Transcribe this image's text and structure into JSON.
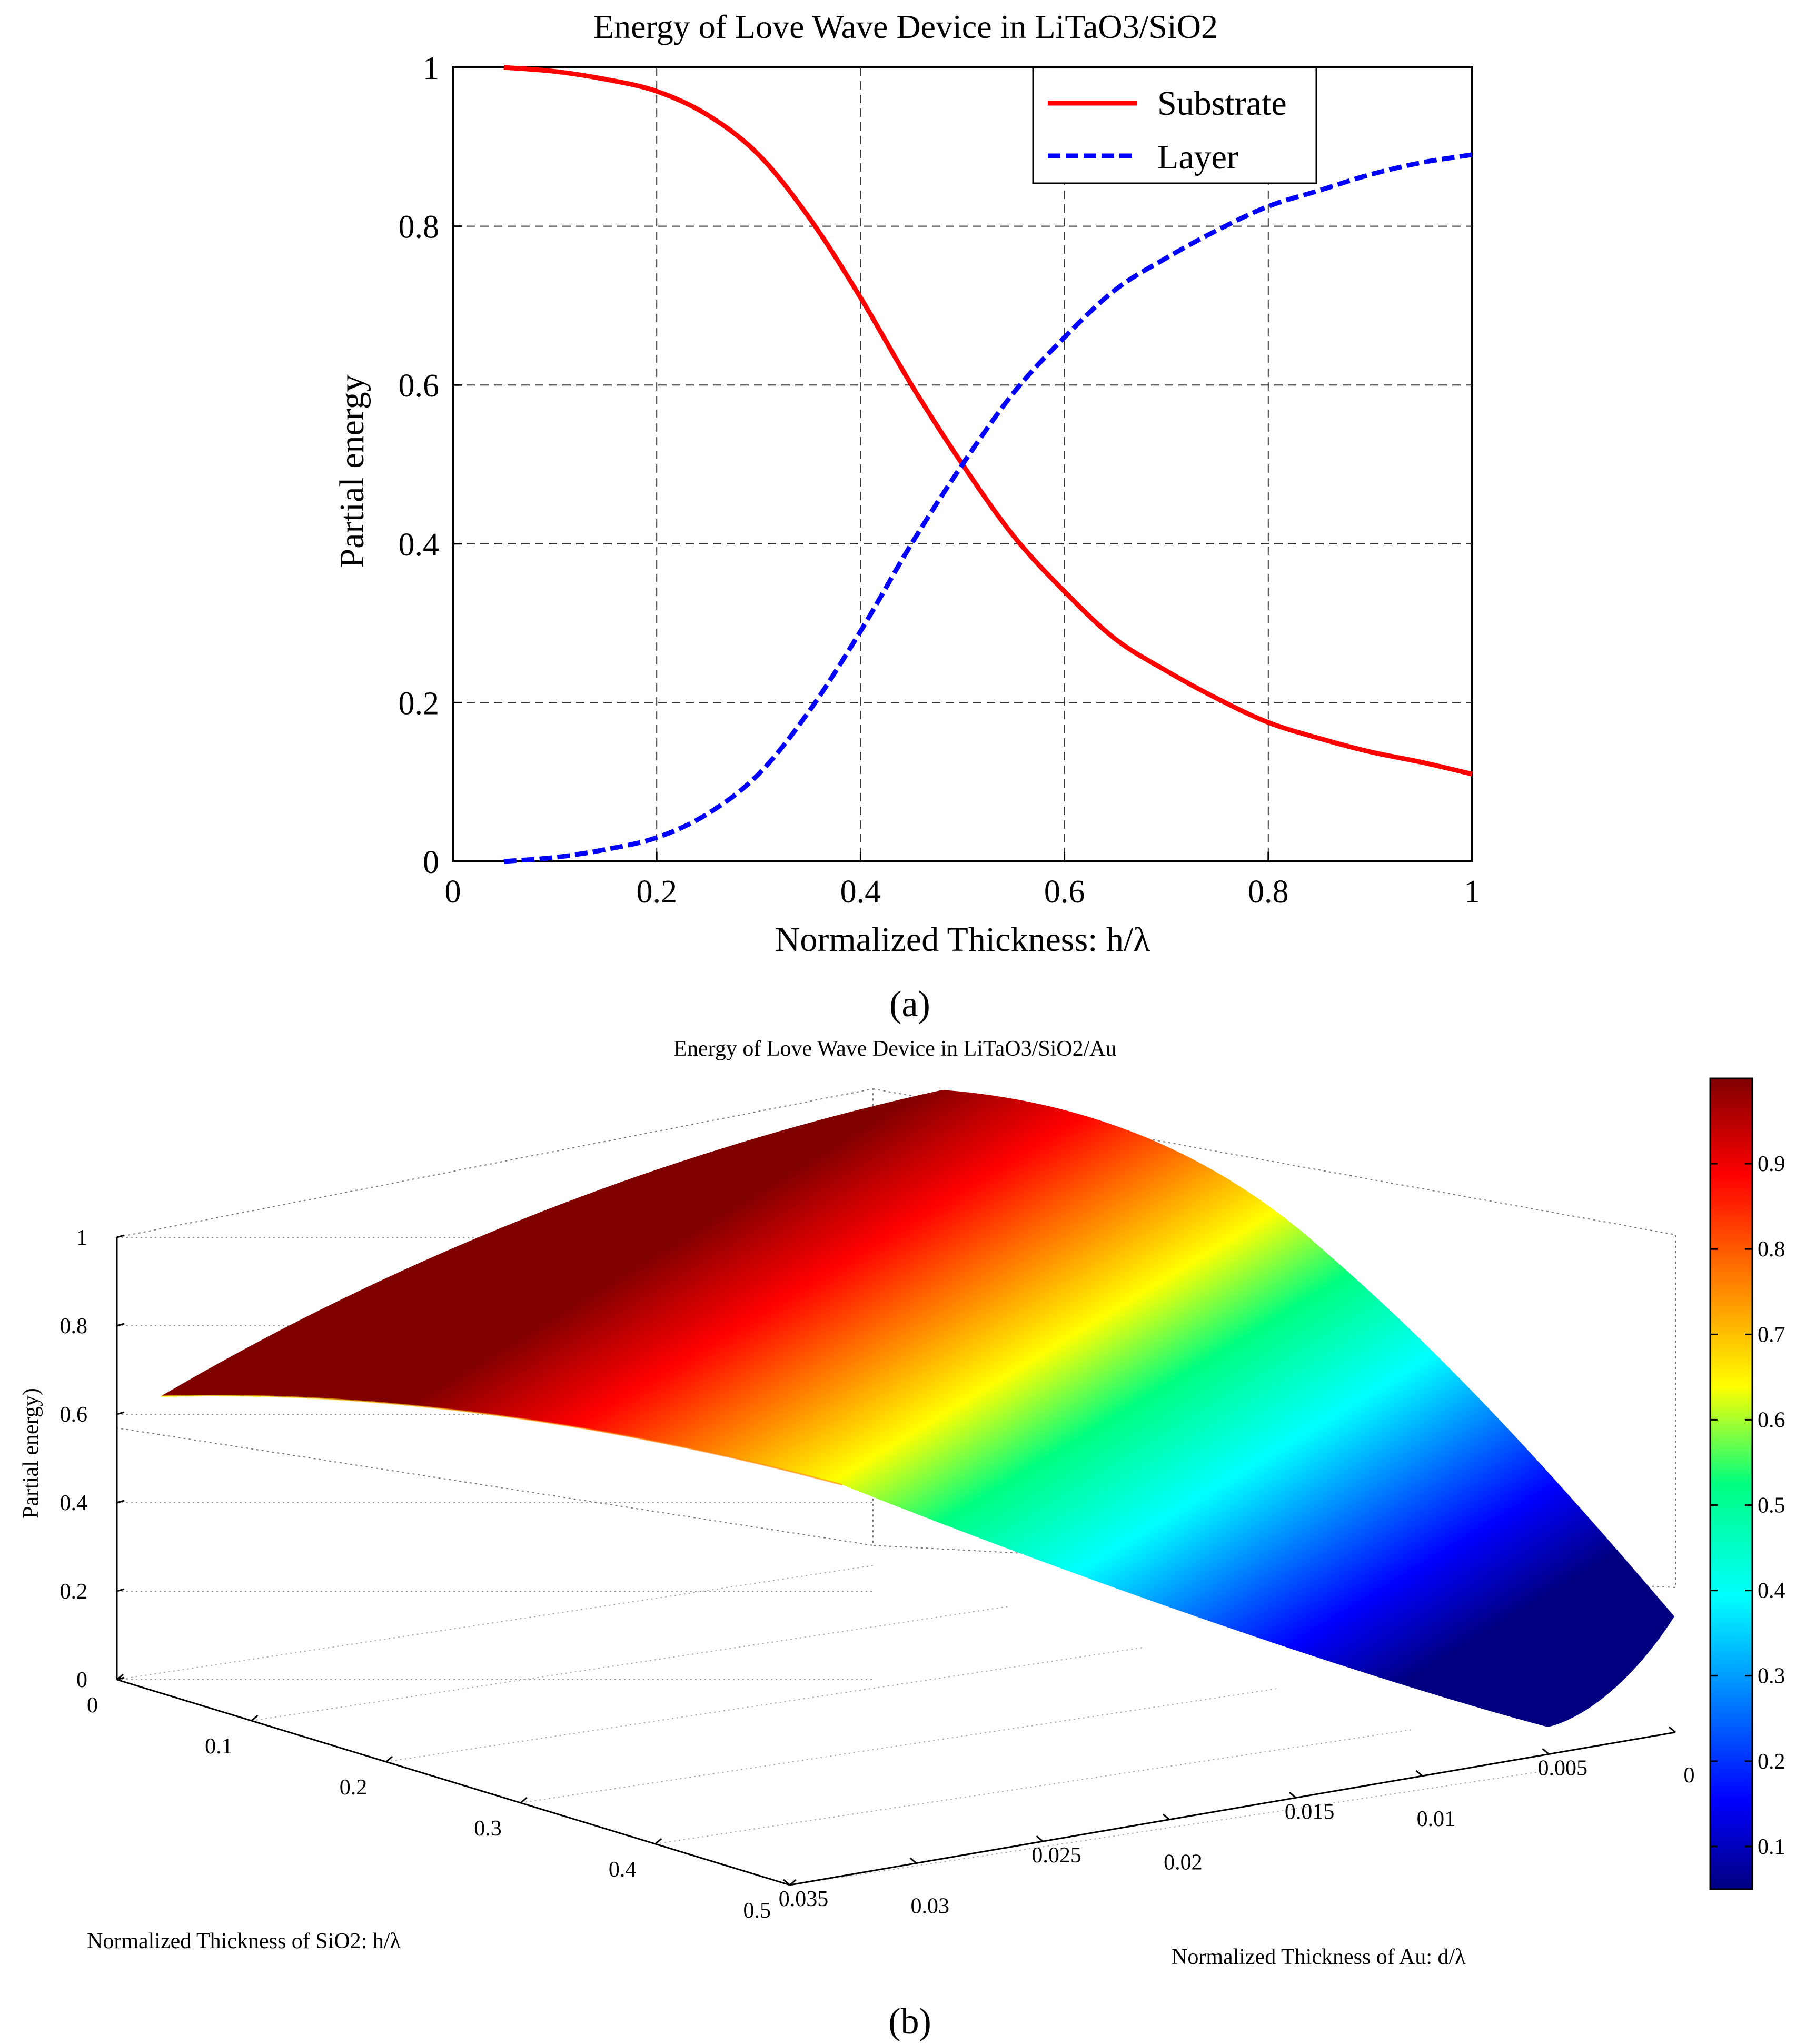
{
  "chart_data": [
    {
      "type": "line",
      "title": "Energy of Love Wave Device in LiTaO3/SiO2",
      "xlabel": "Normalized Thickness: h/λ",
      "ylabel": "Partial energy",
      "xlim": [
        0,
        1
      ],
      "ylim": [
        0,
        1
      ],
      "xticks": [
        "0",
        "0.2",
        "0.4",
        "0.6",
        "0.8",
        "1"
      ],
      "yticks": [
        "0",
        "0.2",
        "0.4",
        "0.6",
        "0.8",
        "1"
      ],
      "grid": true,
      "legend_position": "top-right",
      "series": [
        {
          "name": "Substrate",
          "color": "#ff0000",
          "style": "solid",
          "x": [
            0.05,
            0.1,
            0.15,
            0.2,
            0.25,
            0.3,
            0.35,
            0.4,
            0.45,
            0.5,
            0.55,
            0.6,
            0.65,
            0.7,
            0.75,
            0.8,
            0.85,
            0.9,
            0.95,
            1.0
          ],
          "values": [
            1.0,
            0.995,
            0.985,
            0.97,
            0.94,
            0.89,
            0.81,
            0.71,
            0.6,
            0.5,
            0.41,
            0.34,
            0.28,
            0.24,
            0.205,
            0.175,
            0.155,
            0.138,
            0.125,
            0.11
          ]
        },
        {
          "name": "Layer",
          "color": "#0000ff",
          "style": "dashed",
          "x": [
            0.05,
            0.1,
            0.15,
            0.2,
            0.25,
            0.3,
            0.35,
            0.4,
            0.45,
            0.5,
            0.55,
            0.6,
            0.65,
            0.7,
            0.75,
            0.8,
            0.85,
            0.9,
            0.95,
            1.0
          ],
          "values": [
            0.0,
            0.005,
            0.015,
            0.03,
            0.06,
            0.11,
            0.19,
            0.29,
            0.4,
            0.5,
            0.59,
            0.66,
            0.72,
            0.76,
            0.795,
            0.825,
            0.845,
            0.865,
            0.88,
            0.89
          ]
        }
      ],
      "caption": "(a)"
    },
    {
      "type": "surface",
      "title": "Energy of Love Wave Device in LiTaO3/SiO2/Au",
      "xlabel": "Normalized Thickness of SiO2: h/λ",
      "ylabel": "Normalized Thickness of Au: d/λ",
      "zlabel": "Partial energy)",
      "xlim": [
        0,
        0.5
      ],
      "ylim": [
        0,
        0.035
      ],
      "zlim": [
        0,
        1
      ],
      "xticks": [
        "0",
        "0.1",
        "0.2",
        "0.3",
        "0.4",
        "0.5"
      ],
      "yticks": [
        "0",
        "0.005",
        "0.01",
        "0.015",
        "0.02",
        "0.025",
        "0.03",
        "0.035"
      ],
      "zticks": [
        "0",
        "0.2",
        "0.4",
        "0.6",
        "0.8",
        "1"
      ],
      "colormap": "jet",
      "colorbar_ticks": [
        "0.1",
        "0.2",
        "0.3",
        "0.4",
        "0.5",
        "0.6",
        "0.7",
        "0.8",
        "0.9"
      ],
      "colorbar_range": [
        0.05,
        1.0
      ],
      "caption": "(b)"
    }
  ]
}
